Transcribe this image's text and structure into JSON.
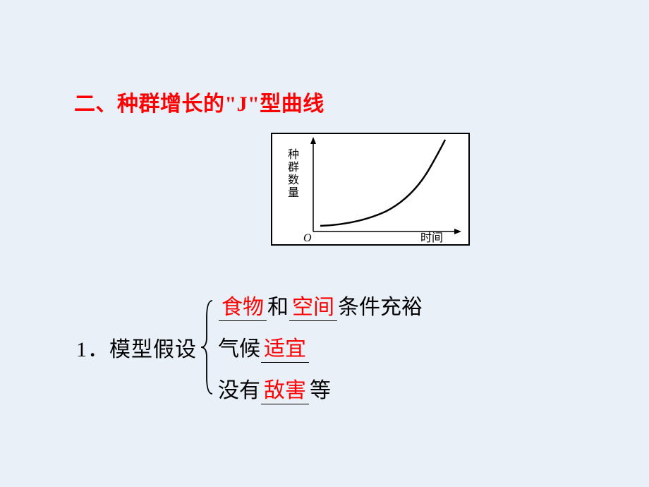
{
  "title": "二、种群增长的\"J\"型曲线",
  "chart": {
    "y_axis_label": "种群数量",
    "x_axis_label": "时间",
    "origin_label": "O",
    "curve_type": "J",
    "background_color": "#ffffff",
    "border_color": "#000000",
    "line_color": "#000000",
    "label_color": "#000000",
    "label_fontsize": 16,
    "curve_points": [
      [
        68,
        130
      ],
      [
        90,
        128
      ],
      [
        110,
        126
      ],
      [
        130,
        122
      ],
      [
        150,
        115
      ],
      [
        170,
        103
      ],
      [
        190,
        85
      ],
      [
        210,
        60
      ],
      [
        230,
        30
      ],
      [
        245,
        8
      ]
    ]
  },
  "model": {
    "prefix": "1．模型假设",
    "lines": [
      {
        "parts": [
          {
            "type": "underline",
            "text": "食物"
          },
          {
            "type": "plain",
            "text": "和"
          },
          {
            "type": "underline",
            "text": "空间"
          },
          {
            "type": "plain",
            "text": "条件充裕"
          }
        ]
      },
      {
        "parts": [
          {
            "type": "plain",
            "text": "气候"
          },
          {
            "type": "underline",
            "text": "适宜"
          }
        ]
      },
      {
        "parts": [
          {
            "type": "plain",
            "text": "没有"
          },
          {
            "type": "underline",
            "text": "敌害"
          },
          {
            "type": "plain",
            "text": "等"
          }
        ]
      }
    ]
  },
  "colors": {
    "background": "#eaf0f8",
    "title_red": "#ff0000",
    "text_black": "#000000"
  }
}
